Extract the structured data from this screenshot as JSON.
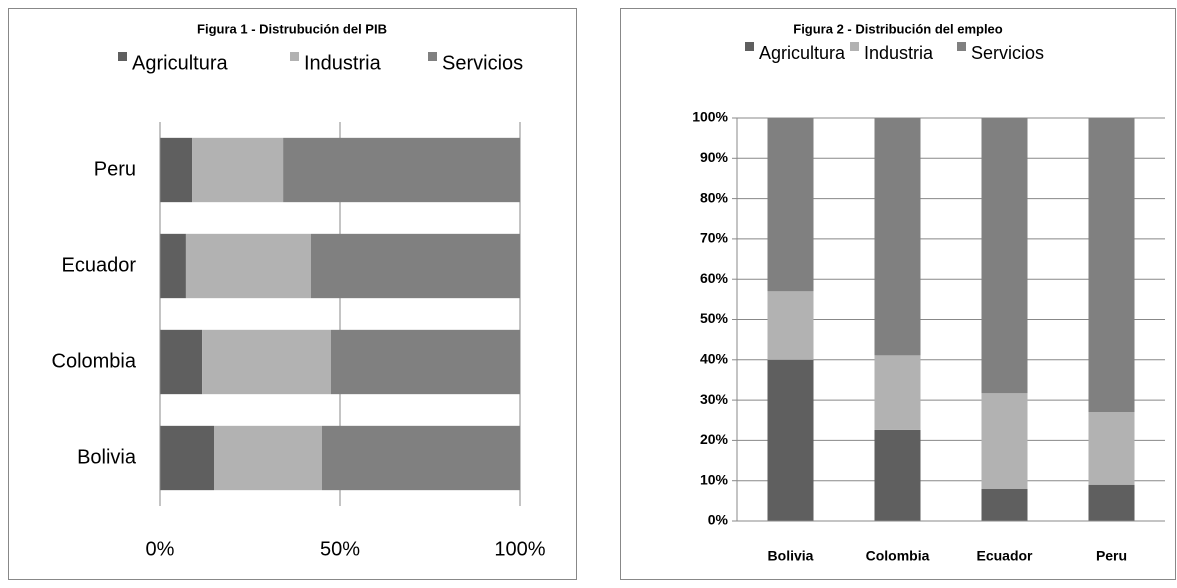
{
  "chart_data": [
    {
      "type": "bar",
      "orientation": "horizontal",
      "stacked": true,
      "title": "Figura 1 - Distrubución del PIB",
      "categories": [
        "Bolivia",
        "Colombia",
        "Ecuador",
        "Peru"
      ],
      "series": [
        {
          "name": "Agricultura",
          "color": "#5f5f5f",
          "values": [
            15,
            11.7,
            7.2,
            8.9
          ]
        },
        {
          "name": "Industria",
          "color": "#b2b2b2",
          "values": [
            30,
            35.8,
            34.7,
            25.3
          ]
        },
        {
          "name": "Servicios",
          "color": "#808080",
          "values": [
            55,
            52.5,
            58.1,
            65.8
          ]
        }
      ],
      "xlim": [
        0,
        100
      ],
      "xticks": [
        {
          "value": 0,
          "label": "0%"
        },
        {
          "value": 50,
          "label": "50%"
        },
        {
          "value": 100,
          "label": "100%"
        }
      ],
      "grid": true,
      "legend": "top"
    },
    {
      "type": "bar",
      "orientation": "vertical",
      "stacked": true,
      "title": "Figura 2 - Distribución del empleo",
      "categories": [
        "Bolivia",
        "Colombia",
        "Ecuador",
        "Peru"
      ],
      "series": [
        {
          "name": "Agricultura",
          "color": "#5f5f5f",
          "values": [
            40,
            22.6,
            8,
            9
          ]
        },
        {
          "name": "Industria",
          "color": "#b2b2b2",
          "values": [
            17,
            18.5,
            23.7,
            18
          ]
        },
        {
          "name": "Servicios",
          "color": "#808080",
          "values": [
            43,
            58.9,
            68.3,
            73
          ]
        }
      ],
      "ylim": [
        0,
        100
      ],
      "yticks": [
        {
          "value": 0,
          "label": "0%"
        },
        {
          "value": 10,
          "label": "10%"
        },
        {
          "value": 20,
          "label": "20%"
        },
        {
          "value": 30,
          "label": "30%"
        },
        {
          "value": 40,
          "label": "40%"
        },
        {
          "value": 50,
          "label": "50%"
        },
        {
          "value": 60,
          "label": "60%"
        },
        {
          "value": 70,
          "label": "70%"
        },
        {
          "value": 80,
          "label": "80%"
        },
        {
          "value": 90,
          "label": "90%"
        },
        {
          "value": 100,
          "label": "100%"
        }
      ],
      "grid": true,
      "legend": "top"
    }
  ]
}
